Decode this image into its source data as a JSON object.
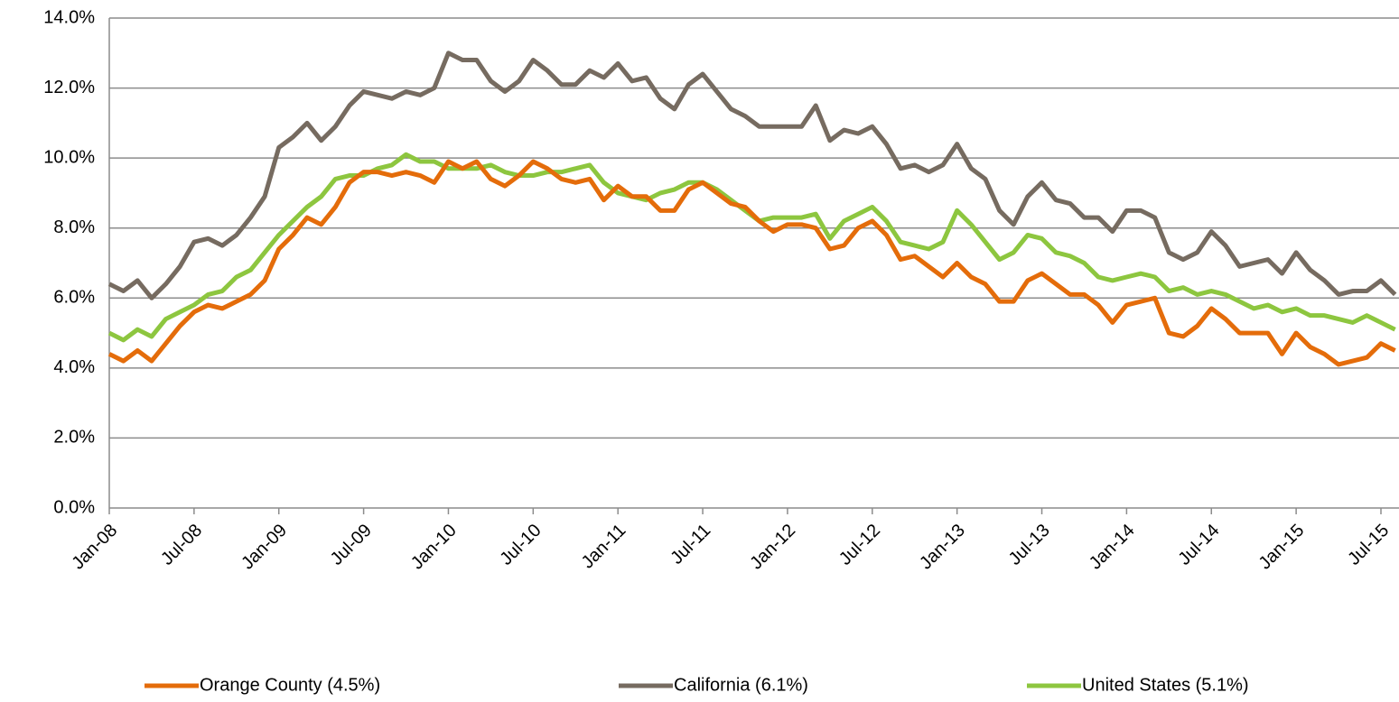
{
  "chart_data": {
    "type": "line",
    "categories": [
      "Jan-08",
      null,
      null,
      null,
      null,
      null,
      "Jul-08",
      null,
      null,
      null,
      null,
      null,
      "Jan-09",
      null,
      null,
      null,
      null,
      null,
      "Jul-09",
      null,
      null,
      null,
      null,
      null,
      "Jan-10",
      null,
      null,
      null,
      null,
      null,
      "Jul-10",
      null,
      null,
      null,
      null,
      null,
      "Jan-11",
      null,
      null,
      null,
      null,
      null,
      "Jul-11",
      null,
      null,
      null,
      null,
      null,
      "Jan-12",
      null,
      null,
      null,
      null,
      null,
      "Jul-12",
      null,
      null,
      null,
      null,
      null,
      "Jan-13",
      null,
      null,
      null,
      null,
      null,
      "Jul-13",
      null,
      null,
      null,
      null,
      null,
      "Jan-14",
      null,
      null,
      null,
      null,
      null,
      "Jul-14",
      null,
      null,
      null,
      null,
      null,
      "Jan-15",
      null,
      null,
      null,
      null,
      null,
      "Jul-15",
      null
    ],
    "series": [
      {
        "name": "Orange County (4.5%)",
        "color": "#e46c0a",
        "values": [
          4.4,
          4.2,
          4.5,
          4.2,
          4.7,
          5.2,
          5.6,
          5.8,
          5.7,
          5.9,
          6.1,
          6.5,
          7.4,
          7.8,
          8.3,
          8.1,
          8.6,
          9.3,
          9.6,
          9.6,
          9.5,
          9.6,
          9.5,
          9.3,
          9.9,
          9.7,
          9.9,
          9.4,
          9.2,
          9.5,
          9.9,
          9.7,
          9.4,
          9.3,
          9.4,
          8.8,
          9.2,
          8.9,
          8.9,
          8.5,
          8.5,
          9.1,
          9.3,
          9.0,
          8.7,
          8.6,
          8.2,
          7.9,
          8.1,
          8.1,
          8.0,
          7.4,
          7.5,
          8.0,
          8.2,
          7.8,
          7.1,
          7.2,
          6.9,
          6.6,
          7.0,
          6.6,
          6.4,
          5.9,
          5.9,
          6.5,
          6.7,
          6.4,
          6.1,
          6.1,
          5.8,
          5.3,
          5.8,
          5.9,
          6.0,
          5.0,
          4.9,
          5.2,
          5.7,
          5.4,
          5.0,
          5.0,
          5.0,
          4.4,
          5.0,
          4.6,
          4.4,
          4.1,
          4.2,
          4.3,
          4.7,
          4.5
        ]
      },
      {
        "name": "California (6.1%)",
        "color": "#766b60",
        "values": [
          6.4,
          6.2,
          6.5,
          6.0,
          6.4,
          6.9,
          7.6,
          7.7,
          7.5,
          7.8,
          8.3,
          8.9,
          10.3,
          10.6,
          11.0,
          10.5,
          10.9,
          11.5,
          11.9,
          11.8,
          11.7,
          11.9,
          11.8,
          12.0,
          13.0,
          12.8,
          12.8,
          12.2,
          11.9,
          12.2,
          12.8,
          12.5,
          12.1,
          12.1,
          12.5,
          12.3,
          12.7,
          12.2,
          12.3,
          11.7,
          11.4,
          12.1,
          12.4,
          11.9,
          11.4,
          11.2,
          10.9,
          10.9,
          10.9,
          10.9,
          11.5,
          10.5,
          10.8,
          10.7,
          10.9,
          10.4,
          9.7,
          9.8,
          9.6,
          9.8,
          10.4,
          9.7,
          9.4,
          8.5,
          8.1,
          8.9,
          9.3,
          8.8,
          8.7,
          8.3,
          8.3,
          7.9,
          8.5,
          8.5,
          8.3,
          7.3,
          7.1,
          7.3,
          7.9,
          7.5,
          6.9,
          7.0,
          7.1,
          6.7,
          7.3,
          6.8,
          6.5,
          6.1,
          6.2,
          6.2,
          6.5,
          6.1
        ]
      },
      {
        "name": "United States (5.1%)",
        "color": "#8dc63f",
        "values": [
          5.0,
          4.8,
          5.1,
          4.9,
          5.4,
          5.6,
          5.8,
          6.1,
          6.2,
          6.6,
          6.8,
          7.3,
          7.8,
          8.2,
          8.6,
          8.9,
          9.4,
          9.5,
          9.5,
          9.7,
          9.8,
          10.1,
          9.9,
          9.9,
          9.7,
          9.7,
          9.7,
          9.8,
          9.6,
          9.5,
          9.5,
          9.6,
          9.6,
          9.7,
          9.8,
          9.3,
          9.0,
          8.9,
          8.8,
          9.0,
          9.1,
          9.3,
          9.3,
          9.1,
          8.8,
          8.5,
          8.2,
          8.3,
          8.3,
          8.3,
          8.4,
          7.7,
          8.2,
          8.4,
          8.6,
          8.2,
          7.6,
          7.5,
          7.4,
          7.6,
          8.5,
          8.1,
          7.6,
          7.1,
          7.3,
          7.8,
          7.7,
          7.3,
          7.2,
          7.0,
          6.6,
          6.5,
          6.6,
          6.7,
          6.6,
          6.2,
          6.3,
          6.1,
          6.2,
          6.1,
          5.9,
          5.7,
          5.8,
          5.6,
          5.7,
          5.5,
          5.5,
          5.4,
          5.3,
          5.5,
          5.3,
          5.1
        ]
      }
    ],
    "ylim": [
      0,
      14
    ],
    "yticks": [
      {
        "value": 0,
        "label": "0.0%"
      },
      {
        "value": 2,
        "label": "2.0%"
      },
      {
        "value": 4,
        "label": "4.0%"
      },
      {
        "value": 6,
        "label": "6.0%"
      },
      {
        "value": 8,
        "label": "8.0%"
      },
      {
        "value": 10,
        "label": "10.0%"
      },
      {
        "value": 12,
        "label": "12.0%"
      },
      {
        "value": 14,
        "label": "14.0%"
      }
    ],
    "grid": true,
    "legend": "bottom"
  }
}
